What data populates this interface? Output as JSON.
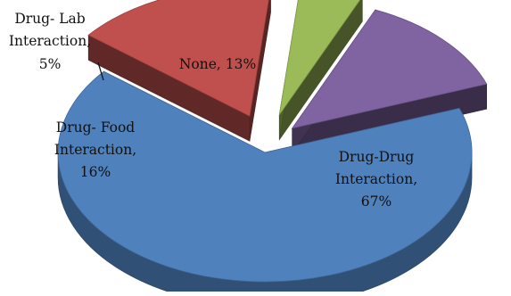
{
  "chart_data": {
    "type": "pie",
    "title": "",
    "style": "3d-exploded",
    "legend": "none",
    "slices": [
      {
        "category": "Drug-Drug Interaction",
        "value": 67,
        "label_lines": [
          "Drug-Drug",
          "Interaction,",
          "67%"
        ],
        "color": "#4f81bd"
      },
      {
        "category": "Drug- Food Interaction",
        "value": 16,
        "label_lines": [
          "Drug- Food",
          "Interaction,",
          "16%"
        ],
        "color": "#c0504d"
      },
      {
        "category": "Drug- Lab Interaction",
        "value": 5,
        "label_lines": [
          "Drug- Lab",
          "Interaction,",
          "5%"
        ],
        "color": "#9bbb59"
      },
      {
        "category": "None",
        "value": 13,
        "label_lines": [
          "None, 13%"
        ],
        "color": "#8064a2"
      }
    ]
  }
}
